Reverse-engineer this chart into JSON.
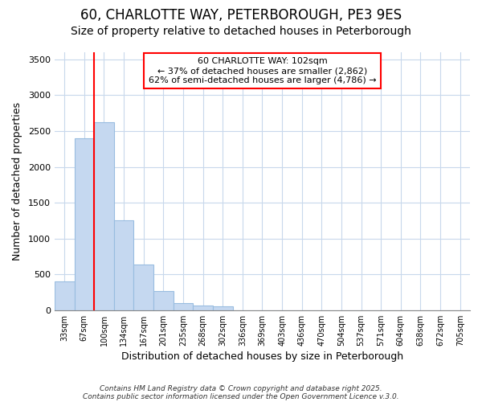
{
  "title1": "60, CHARLOTTE WAY, PETERBOROUGH, PE3 9ES",
  "title2": "Size of property relative to detached houses in Peterborough",
  "xlabel": "Distribution of detached houses by size in Peterborough",
  "ylabel": "Number of detached properties",
  "categories": [
    "33sqm",
    "67sqm",
    "100sqm",
    "134sqm",
    "167sqm",
    "201sqm",
    "235sqm",
    "268sqm",
    "302sqm",
    "336sqm",
    "369sqm",
    "403sqm",
    "436sqm",
    "470sqm",
    "504sqm",
    "537sqm",
    "571sqm",
    "604sqm",
    "638sqm",
    "672sqm",
    "705sqm"
  ],
  "values": [
    400,
    2400,
    2620,
    1250,
    640,
    270,
    100,
    60,
    55,
    0,
    0,
    0,
    0,
    0,
    0,
    0,
    0,
    0,
    0,
    0,
    0
  ],
  "bar_color": "#c5d8f0",
  "bar_edge_color": "#99bde0",
  "red_line_x": 1.5,
  "ylim": [
    0,
    3600
  ],
  "yticks": [
    0,
    500,
    1000,
    1500,
    2000,
    2500,
    3000,
    3500
  ],
  "annotation_text": "60 CHARLOTTE WAY: 102sqm\n← 37% of detached houses are smaller (2,862)\n62% of semi-detached houses are larger (4,786) →",
  "footer1": "Contains HM Land Registry data © Crown copyright and database right 2025.",
  "footer2": "Contains public sector information licensed under the Open Government Licence v.3.0.",
  "bg_color": "#ffffff",
  "plot_bg_color": "#ffffff",
  "grid_color": "#c8d8ec",
  "title1_fontsize": 12,
  "title2_fontsize": 10
}
